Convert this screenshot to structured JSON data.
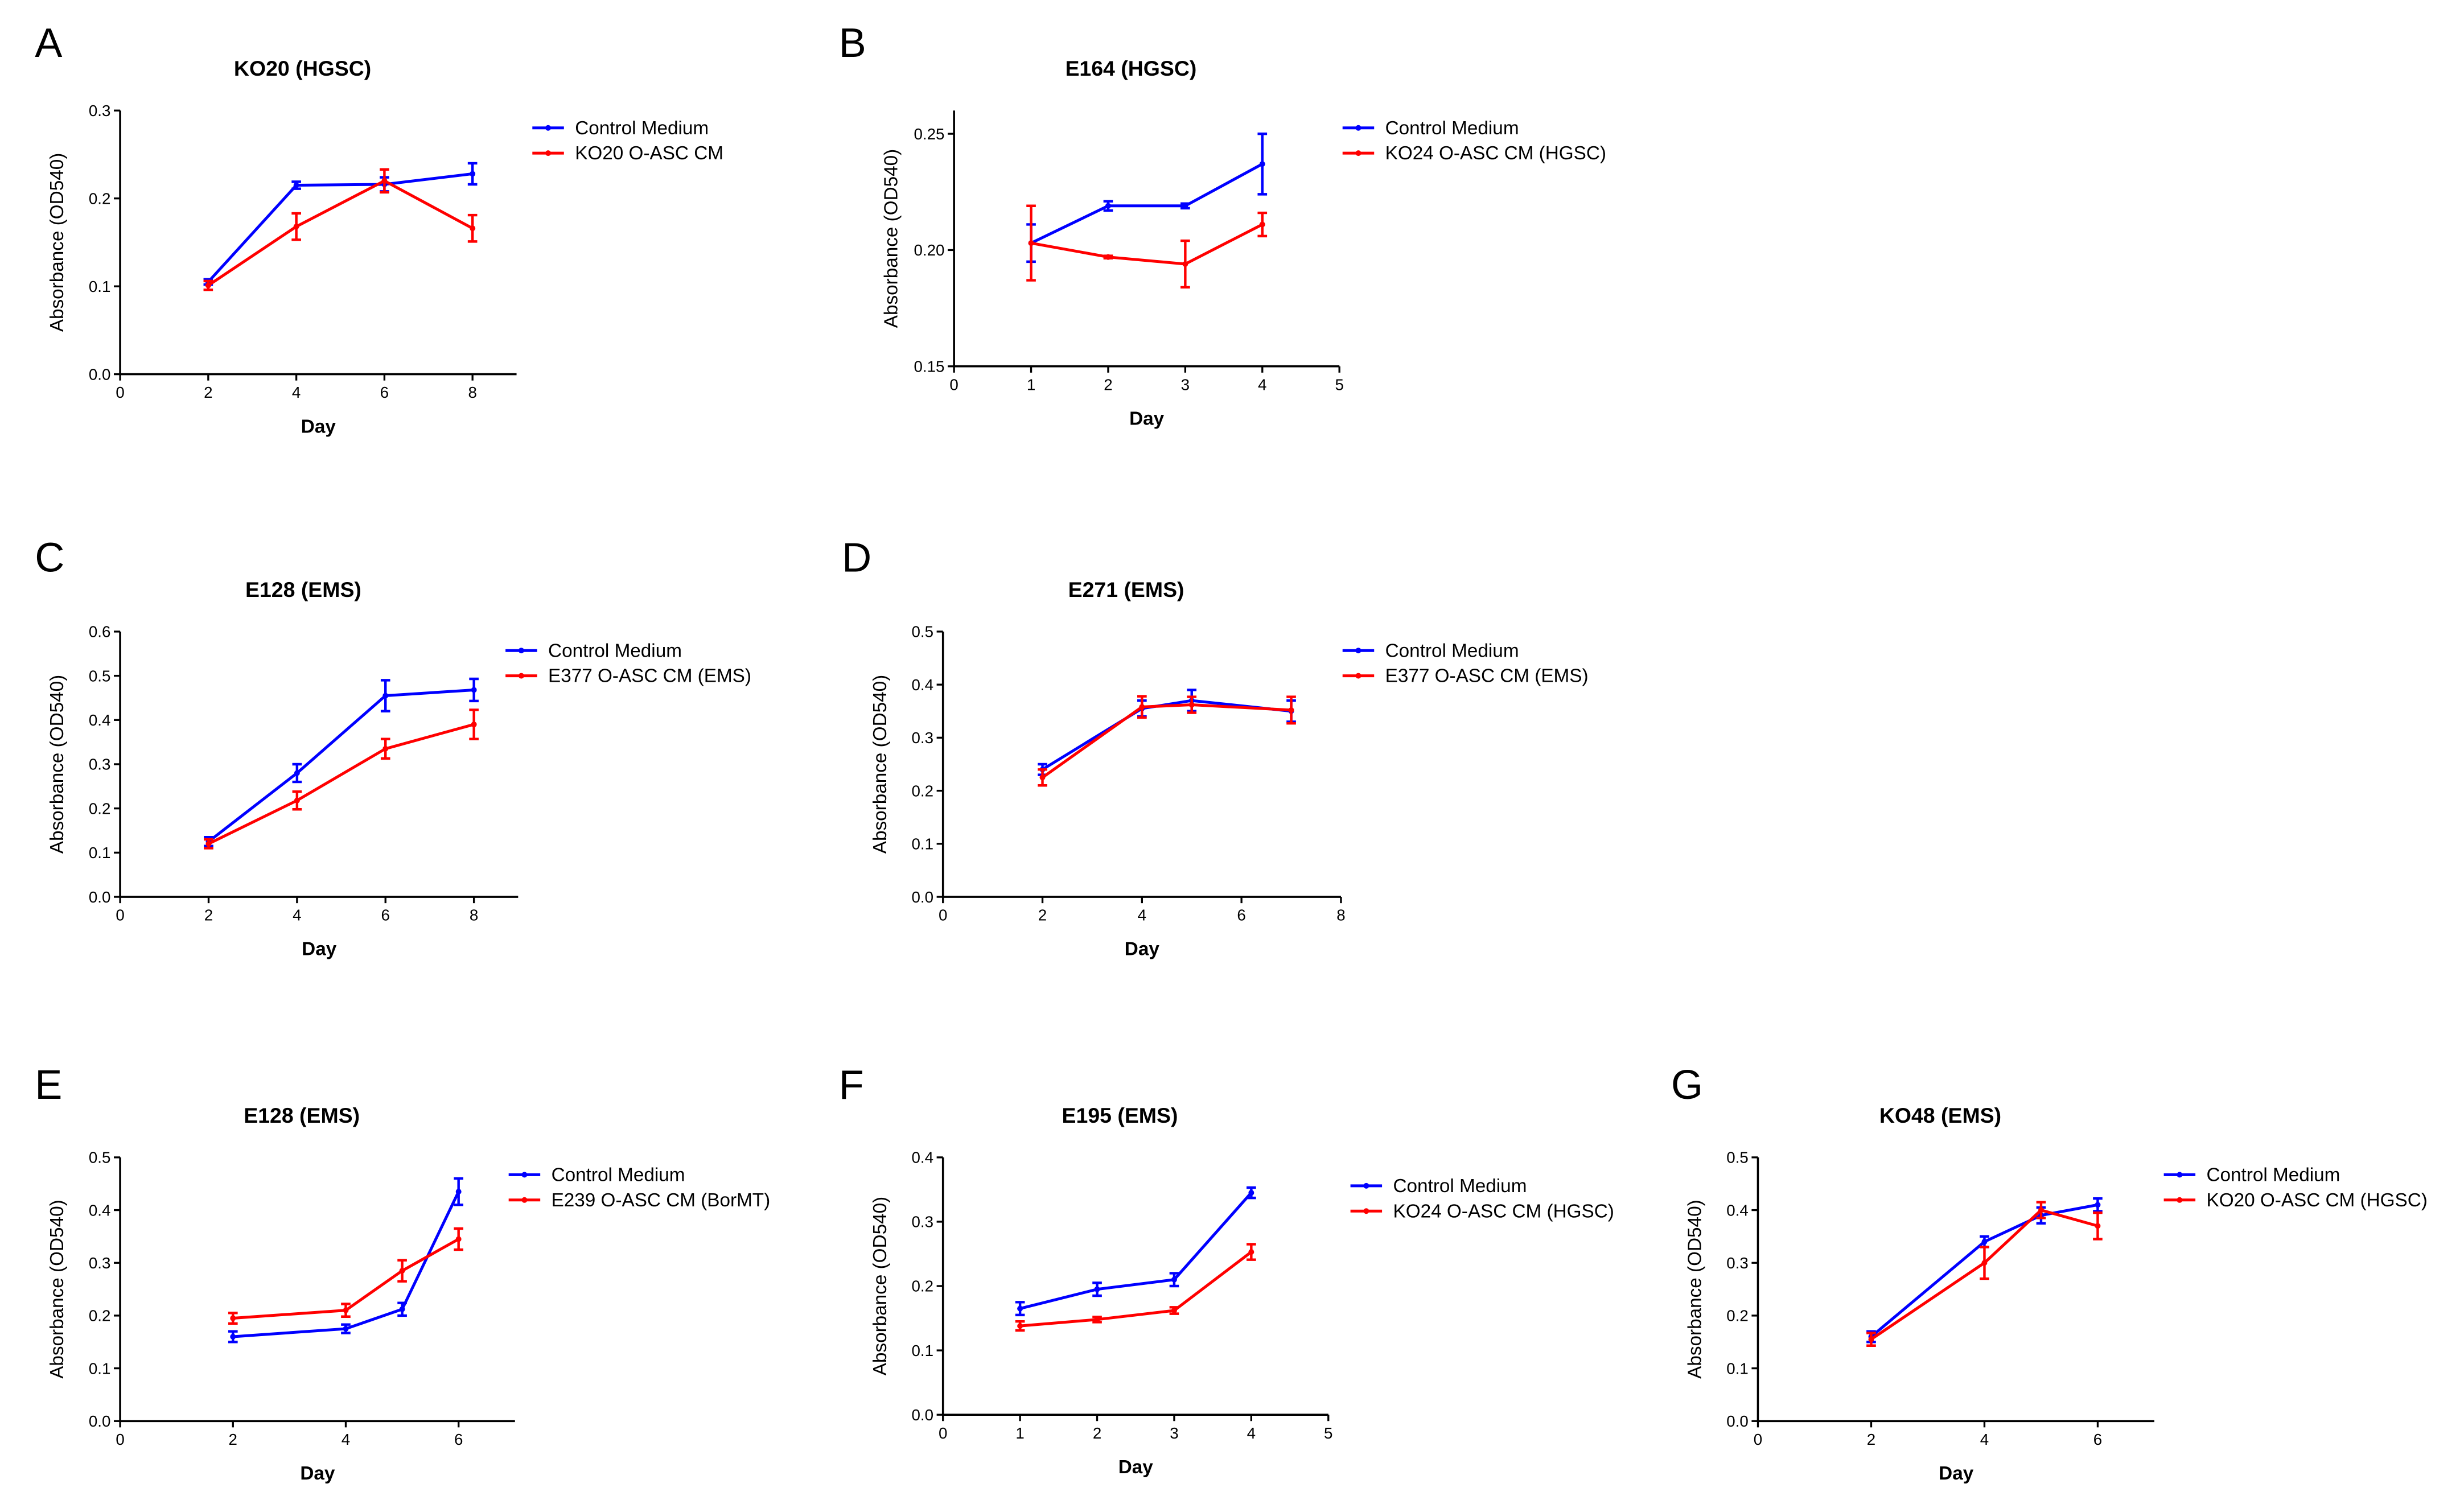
{
  "chart_data": [
    {
      "type": "line",
      "panel": "A",
      "title": "KO20 (HGSC)",
      "x_label": "Day",
      "y_label": "Absorbance (OD540)",
      "x": [
        2,
        4,
        6,
        8
      ],
      "xlim": [
        0,
        9
      ],
      "xticks": [
        0,
        2,
        4,
        6,
        8
      ],
      "ylim": [
        0,
        0.3
      ],
      "yticks": [
        {
          "value": 0,
          "label": "0.0"
        },
        0.1,
        0.2,
        0.3
      ],
      "series": [
        {
          "name": "Control Medium",
          "color": "#0000ff",
          "values": [
            0.105,
            0.215,
            0.216,
            0.228
          ],
          "errors": [
            0.003,
            0.004,
            0.008,
            0.012
          ]
        },
        {
          "name": "KO20 O-ASC CM",
          "color": "#ff0000",
          "values": [
            0.101,
            0.168,
            0.22,
            0.166
          ],
          "errors": [
            0.005,
            0.015,
            0.013,
            0.015
          ]
        }
      ]
    },
    {
      "type": "line",
      "panel": "B",
      "title": "E164 (HGSC)",
      "x_label": "Day",
      "y_label": "Absorbance (OD540)",
      "x": [
        1,
        2,
        3,
        4
      ],
      "xlim": [
        0,
        5
      ],
      "xticks": [
        0,
        1,
        2,
        3,
        4,
        5
      ],
      "ylim": [
        0.15,
        0.26
      ],
      "yticks": [
        0.15,
        {
          "value": 0.2,
          "label": "0.20"
        },
        0.25
      ],
      "series": [
        {
          "name": "Control Medium",
          "color": "#0000ff",
          "values": [
            0.203,
            0.219,
            0.219,
            0.237
          ],
          "errors": [
            0.008,
            0.002,
            0.001,
            0.013
          ]
        },
        {
          "name": "KO24 O-ASC CM (HGSC)",
          "color": "#ff0000",
          "values": [
            0.203,
            0.197,
            0.194,
            0.211
          ],
          "errors": [
            0.016,
            0.0005,
            0.01,
            0.005
          ]
        }
      ]
    },
    {
      "type": "line",
      "panel": "C",
      "title": "E128 (EMS)",
      "x_label": "Day",
      "y_label": "Absorbance (OD540)",
      "x": [
        2,
        4,
        6,
        8
      ],
      "xlim": [
        0,
        9
      ],
      "xticks": [
        0,
        2,
        4,
        6,
        8
      ],
      "ylim": [
        0,
        0.6
      ],
      "yticks": [
        {
          "value": 0,
          "label": "0.0"
        },
        0.1,
        0.2,
        0.3,
        0.4,
        0.5,
        0.6
      ],
      "series": [
        {
          "name": "Control Medium",
          "color": "#0000ff",
          "values": [
            0.125,
            0.28,
            0.455,
            0.468
          ],
          "errors": [
            0.01,
            0.02,
            0.035,
            0.025
          ]
        },
        {
          "name": "E377 O-ASC CM (EMS)",
          "color": "#ff0000",
          "values": [
            0.12,
            0.218,
            0.335,
            0.39
          ],
          "errors": [
            0.01,
            0.02,
            0.022,
            0.033
          ]
        }
      ]
    },
    {
      "type": "line",
      "panel": "D",
      "title": "E271 (EMS)",
      "x_label": "Day",
      "y_label": "Absorbance (OD540)",
      "x": [
        2,
        4,
        5,
        7
      ],
      "xlim": [
        0,
        8
      ],
      "xticks": [
        0,
        2,
        4,
        6,
        8
      ],
      "ylim": [
        0,
        0.5
      ],
      "yticks": [
        {
          "value": 0,
          "label": "0.0"
        },
        0.1,
        0.2,
        0.3,
        0.4,
        0.5
      ],
      "series": [
        {
          "name": "Control Medium",
          "color": "#0000ff",
          "values": [
            0.24,
            0.355,
            0.37,
            0.35
          ],
          "errors": [
            0.01,
            0.015,
            0.02,
            0.02
          ]
        },
        {
          "name": "E377 O-ASC CM (EMS)",
          "color": "#ff0000",
          "values": [
            0.225,
            0.358,
            0.362,
            0.352
          ],
          "errors": [
            0.015,
            0.02,
            0.015,
            0.025
          ]
        }
      ]
    },
    {
      "type": "line",
      "panel": "E",
      "title": "E128 (EMS)",
      "x_label": "Day",
      "y_label": "Absorbance (OD540)",
      "x": [
        2,
        4,
        5,
        6
      ],
      "xlim": [
        0,
        7
      ],
      "xticks": [
        0,
        2,
        4,
        6
      ],
      "ylim": [
        0,
        0.5
      ],
      "yticks": [
        {
          "value": 0,
          "label": "0.0"
        },
        0.1,
        0.2,
        0.3,
        0.4,
        0.5
      ],
      "series": [
        {
          "name": "Control Medium",
          "color": "#0000ff",
          "values": [
            0.16,
            0.175,
            0.212,
            0.435
          ],
          "errors": [
            0.01,
            0.008,
            0.012,
            0.025
          ]
        },
        {
          "name": "E239 O-ASC CM (BorMT)",
          "color": "#ff0000",
          "values": [
            0.195,
            0.21,
            0.285,
            0.345
          ],
          "errors": [
            0.01,
            0.012,
            0.02,
            0.02
          ]
        }
      ]
    },
    {
      "type": "line",
      "panel": "F",
      "title": "E195 (EMS)",
      "x_label": "Day",
      "y_label": "Absorbance (OD540)",
      "x": [
        1,
        2,
        3,
        4
      ],
      "xlim": [
        0,
        5
      ],
      "xticks": [
        0,
        1,
        2,
        3,
        4,
        5
      ],
      "ylim": [
        0,
        0.4
      ],
      "yticks": [
        {
          "value": 0,
          "label": "0.0"
        },
        0.1,
        0.2,
        0.3,
        0.4
      ],
      "series": [
        {
          "name": "Control Medium",
          "color": "#0000ff",
          "values": [
            0.165,
            0.195,
            0.21,
            0.345
          ],
          "errors": [
            0.01,
            0.01,
            0.01,
            0.008
          ]
        },
        {
          "name": "KO24 O-ASC CM (HGSC)",
          "color": "#ff0000",
          "values": [
            0.138,
            0.148,
            0.162,
            0.253
          ],
          "errors": [
            0.007,
            0.004,
            0.005,
            0.012
          ]
        }
      ]
    },
    {
      "type": "line",
      "panel": "G",
      "title": "KO48 (EMS)",
      "x_label": "Day",
      "y_label": "Absorbance (OD540)",
      "x": [
        2,
        4,
        5,
        6
      ],
      "xlim": [
        0,
        7
      ],
      "xticks": [
        0,
        2,
        4,
        6
      ],
      "ylim": [
        0,
        0.5
      ],
      "yticks": [
        {
          "value": 0,
          "label": "0.0"
        },
        0.1,
        0.2,
        0.3,
        0.4,
        0.5
      ],
      "series": [
        {
          "name": "Control Medium",
          "color": "#0000ff",
          "values": [
            0.16,
            0.34,
            0.39,
            0.41
          ],
          "errors": [
            0.01,
            0.01,
            0.015,
            0.012
          ]
        },
        {
          "name": "KO20 O-ASC CM (HGSC)",
          "color": "#ff0000",
          "values": [
            0.155,
            0.3,
            0.4,
            0.37
          ],
          "errors": [
            0.012,
            0.03,
            0.015,
            0.025
          ]
        }
      ]
    }
  ]
}
